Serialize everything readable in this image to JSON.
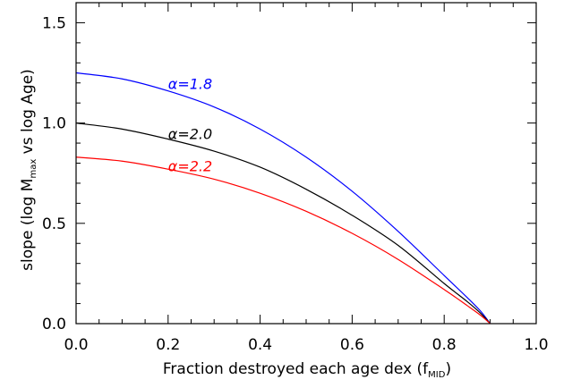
{
  "chart_data": {
    "type": "line",
    "xlabel": {
      "main": "Fraction destroyed each age dex (f",
      "sub": "MID",
      "close": ")"
    },
    "ylabel": {
      "main": "slope (log M",
      "sub": "max",
      "tail": " vs log Age)"
    },
    "xlim": [
      0.0,
      1.0
    ],
    "ylim": [
      0.0,
      1.6
    ],
    "xticks": [
      {
        "value": 0.0,
        "label": "0.0"
      },
      {
        "value": 0.2,
        "label": "0.2"
      },
      {
        "value": 0.4,
        "label": "0.4"
      },
      {
        "value": 0.6,
        "label": "0.6"
      },
      {
        "value": 0.8,
        "label": "0.8"
      },
      {
        "value": 1.0,
        "label": "1.0"
      }
    ],
    "yticks": [
      {
        "value": 0.0,
        "label": "0.0"
      },
      {
        "value": 0.5,
        "label": "0.5"
      },
      {
        "value": 1.0,
        "label": "1.0"
      },
      {
        "value": 1.5,
        "label": "1.5"
      }
    ],
    "grid": false,
    "series": [
      {
        "name": "α=1.8",
        "color": "#0000ff",
        "x": [
          0.0,
          0.1,
          0.2,
          0.3,
          0.4,
          0.5,
          0.6,
          0.7,
          0.8,
          0.85,
          0.88,
          0.9
        ],
        "y": [
          1.25,
          1.22,
          1.16,
          1.08,
          0.97,
          0.83,
          0.66,
          0.46,
          0.24,
          0.13,
          0.06,
          0.0
        ]
      },
      {
        "name": "α=2.0",
        "color": "#000000",
        "x": [
          0.0,
          0.1,
          0.2,
          0.3,
          0.4,
          0.5,
          0.6,
          0.7,
          0.8,
          0.85,
          0.88,
          0.9
        ],
        "y": [
          1.0,
          0.97,
          0.92,
          0.86,
          0.78,
          0.67,
          0.54,
          0.39,
          0.2,
          0.11,
          0.05,
          0.0
        ]
      },
      {
        "name": "α=2.2",
        "color": "#ff0000",
        "x": [
          0.0,
          0.1,
          0.2,
          0.3,
          0.4,
          0.5,
          0.6,
          0.7,
          0.8,
          0.85,
          0.88,
          0.9
        ],
        "y": [
          0.83,
          0.81,
          0.77,
          0.72,
          0.65,
          0.56,
          0.45,
          0.32,
          0.17,
          0.09,
          0.04,
          0.0
        ]
      }
    ],
    "annotations": [
      {
        "text": "α=1.8",
        "x": 0.2,
        "y": 1.17,
        "color": "#0000ff"
      },
      {
        "text": "α=2.0",
        "x": 0.2,
        "y": 0.92,
        "color": "#000000"
      },
      {
        "text": "α=2.2",
        "x": 0.2,
        "y": 0.76,
        "color": "#ff0000"
      }
    ]
  }
}
